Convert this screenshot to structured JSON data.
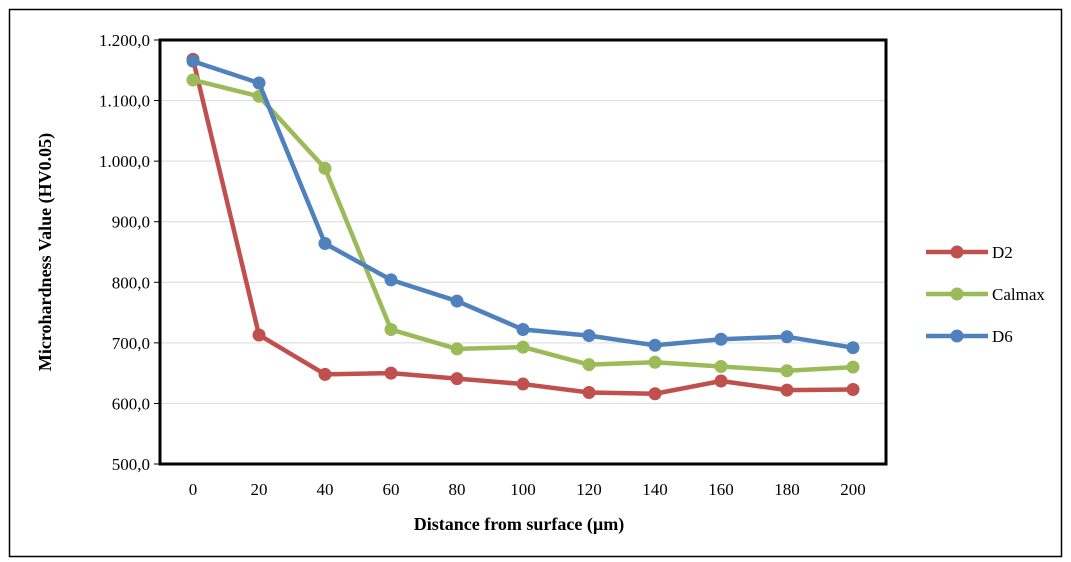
{
  "chart_data": {
    "type": "line",
    "title": "",
    "xlabel": "Distance from surface (µm)",
    "ylabel": "Microhardness Value (HV0.05)",
    "x": [
      0,
      20,
      40,
      60,
      80,
      100,
      120,
      140,
      160,
      180,
      200
    ],
    "x_tick_labels": [
      "0",
      "20",
      "40",
      "60",
      "80",
      "100",
      "120",
      "140",
      "160",
      "180",
      "200"
    ],
    "ylim": [
      500,
      1200
    ],
    "y_ticks": [
      500,
      600,
      700,
      800,
      900,
      1000,
      1100,
      1200
    ],
    "y_tick_labels": [
      "500,0",
      "600,0",
      "700,0",
      "800,0",
      "900,0",
      "1.000,0",
      "1.100,0",
      "1.200,0"
    ],
    "grid": "horizontal",
    "legend_position": "right",
    "series": [
      {
        "name": "D2",
        "color": "#c0504d",
        "values": [
          1168,
          713,
          648,
          650,
          641,
          632,
          618,
          616,
          637,
          622,
          623
        ]
      },
      {
        "name": "Calmax",
        "color": "#9bbb59",
        "values": [
          1134,
          1107,
          988,
          722,
          690,
          693,
          664,
          668,
          661,
          654,
          660
        ]
      },
      {
        "name": "D6",
        "color": "#4f81bd",
        "values": [
          1165,
          1129,
          864,
          804,
          769,
          722,
          712,
          696,
          706,
          710,
          692
        ]
      }
    ]
  }
}
